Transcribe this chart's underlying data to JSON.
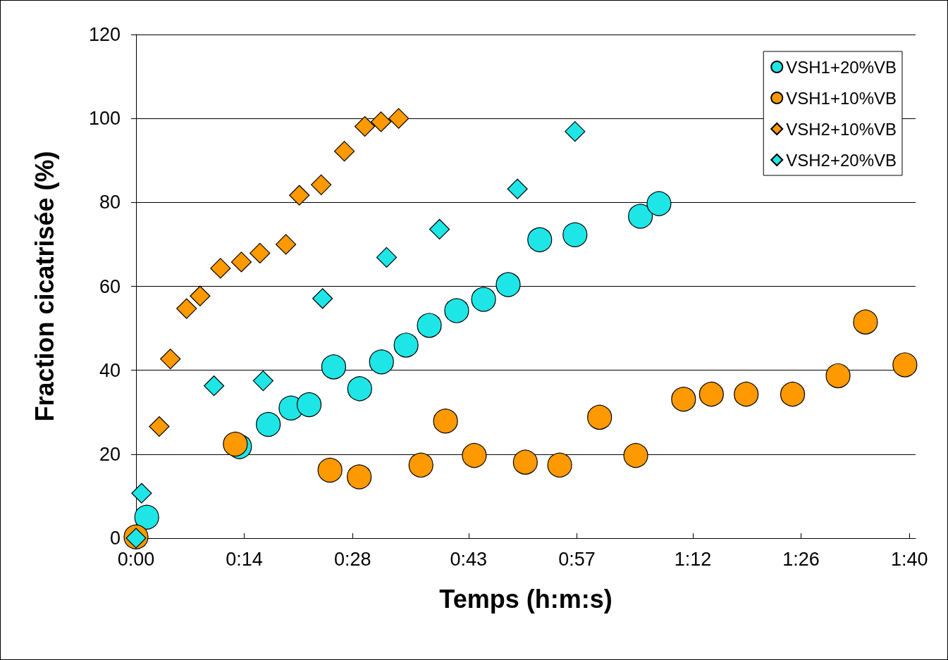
{
  "chart_data": {
    "type": "scatter",
    "xlabel": "Temps (h:m:s)",
    "ylabel": "Fraction cicatrisée (%)",
    "xlim": [
      0,
      1.68
    ],
    "xticks": [
      {
        "value": 0,
        "label": "0:00"
      },
      {
        "value": 0.2333,
        "label": "0:14"
      },
      {
        "value": 0.4667,
        "label": "0:28"
      },
      {
        "value": 0.7167,
        "label": "0:43"
      },
      {
        "value": 0.95,
        "label": "0:57"
      },
      {
        "value": 1.2,
        "label": "1:12"
      },
      {
        "value": 1.4333,
        "label": "1:26"
      },
      {
        "value": 1.6667,
        "label": "1:40"
      }
    ],
    "ylim": [
      0,
      120
    ],
    "yticks": [
      0,
      20,
      40,
      60,
      80,
      100,
      120
    ],
    "grid": "y",
    "legend": "top right",
    "series": [
      {
        "name": "VSH1+20%VB",
        "color": "#1ee6e6",
        "marker": "circle",
        "x": [
          0.023,
          0.223,
          0.285,
          0.334,
          0.373,
          0.426,
          0.482,
          0.529,
          0.582,
          0.632,
          0.691,
          0.749,
          0.802,
          0.87,
          0.946,
          1.087,
          1.127
        ],
        "values": [
          5.0,
          21.8,
          27.1,
          31.0,
          31.8,
          40.8,
          35.6,
          42.0,
          46.0,
          50.7,
          54.2,
          56.9,
          60.4,
          71.1,
          72.3,
          76.7,
          79.7
        ]
      },
      {
        "name": "VSH1+10%VB",
        "color": "#ff9900",
        "marker": "circle",
        "x": [
          0,
          0.214,
          0.418,
          0.481,
          0.614,
          0.667,
          0.729,
          0.839,
          0.913,
          0.999,
          1.077,
          1.18,
          1.24,
          1.315,
          1.415,
          1.513,
          1.572,
          1.657
        ],
        "values": [
          0.3,
          22.4,
          16.2,
          14.6,
          17.4,
          27.9,
          19.7,
          18.1,
          17.4,
          28.8,
          19.7,
          33.1,
          34.3,
          34.3,
          34.3,
          38.7,
          51.5,
          41.3
        ]
      },
      {
        "name": "VSH2+10%VB",
        "color": "#ff9900",
        "marker": "diamond",
        "x": [
          0.05,
          0.074,
          0.109,
          0.138,
          0.182,
          0.227,
          0.267,
          0.323,
          0.352,
          0.399,
          0.449,
          0.493,
          0.528,
          0.566
        ],
        "values": [
          26.6,
          42.7,
          54.7,
          57.7,
          64.3,
          65.8,
          67.9,
          70.0,
          81.7,
          84.2,
          92.2,
          98.1,
          99.2,
          100
        ]
      },
      {
        "name": "VSH2+20%VB",
        "color": "#1ee6e6",
        "marker": "diamond",
        "x": [
          0,
          0.012,
          0.168,
          0.274,
          0.402,
          0.54,
          0.654,
          0.822,
          0.946
        ],
        "values": [
          0,
          10.7,
          36.3,
          37.5,
          57.1,
          66.9,
          73.6,
          83.2,
          96.9
        ]
      }
    ]
  }
}
